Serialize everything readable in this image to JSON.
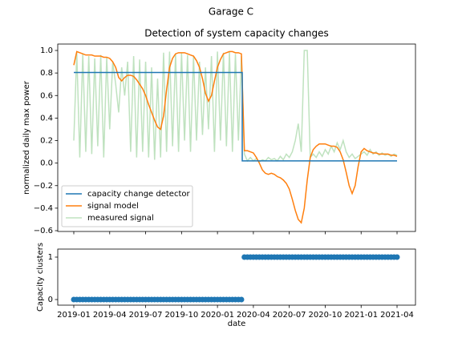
{
  "figure_title": "Garage C",
  "chart_data": [
    {
      "type": "line",
      "title": "Detection of system capacity changes",
      "ylabel": "normalized daily max power",
      "xlim": [
        -1.34,
        28.54
      ],
      "ylim": [
        -0.607,
        1.057
      ],
      "yticks": [
        {
          "value": -0.6,
          "label": "−0.6"
        },
        {
          "value": -0.4,
          "label": "−0.4"
        },
        {
          "value": -0.2,
          "label": "−0.2"
        },
        {
          "value": 0,
          "label": "0.0"
        },
        {
          "value": 0.2,
          "label": "0.2"
        },
        {
          "value": 0.4,
          "label": "0.4"
        },
        {
          "value": 0.6,
          "label": "0.6"
        },
        {
          "value": 0.8,
          "label": "0.8"
        },
        {
          "value": 1,
          "label": "1.0"
        }
      ],
      "legend": "lower left",
      "x": [
        0,
        0.25,
        0.5,
        0.75,
        1,
        1.25,
        1.5,
        1.75,
        2,
        2.25,
        2.5,
        2.75,
        3,
        3.25,
        3.5,
        3.75,
        4,
        4.25,
        4.5,
        4.75,
        5,
        5.25,
        5.5,
        5.75,
        6,
        6.25,
        6.5,
        6.75,
        7,
        7.25,
        7.5,
        7.75,
        8,
        8.25,
        8.5,
        8.75,
        9,
        9.25,
        9.5,
        9.75,
        10,
        10.25,
        10.5,
        10.75,
        11,
        11.25,
        11.5,
        11.75,
        12,
        12.25,
        12.5,
        12.75,
        13,
        13.25,
        13.5,
        13.75,
        14,
        14.25,
        14.5,
        14.75,
        15,
        15.25,
        15.5,
        15.75,
        16,
        16.25,
        16.5,
        16.75,
        17,
        17.25,
        17.5,
        17.75,
        18,
        18.25,
        18.5,
        18.75,
        19,
        19.25,
        19.5,
        19.75,
        20,
        20.25,
        20.5,
        20.75,
        21,
        21.25,
        21.5,
        21.75,
        22,
        22.25,
        22.5,
        22.75,
        23,
        23.25,
        23.5,
        23.75,
        24,
        24.25,
        24.5,
        24.75,
        25,
        25.25,
        25.5,
        25.75,
        26,
        26.25,
        26.5,
        26.75,
        27
      ],
      "series": [
        {
          "name": "capacity change detector",
          "color": "#1f77b4",
          "x": [
            0,
            14.07,
            14.07,
            27
          ],
          "values": [
            0.805,
            0.805,
            0.02,
            0.02
          ]
        },
        {
          "name": "signal model",
          "color": "#ff7f0e",
          "values": [
            0.87,
            0.99,
            0.98,
            0.97,
            0.96,
            0.96,
            0.96,
            0.95,
            0.95,
            0.95,
            0.94,
            0.94,
            0.93,
            0.9,
            0.85,
            0.76,
            0.73,
            0.76,
            0.78,
            0.78,
            0.77,
            0.74,
            0.7,
            0.66,
            0.6,
            0.52,
            0.45,
            0.38,
            0.32,
            0.3,
            0.42,
            0.65,
            0.85,
            0.93,
            0.97,
            0.98,
            0.98,
            0.98,
            0.97,
            0.96,
            0.95,
            0.91,
            0.85,
            0.75,
            0.62,
            0.55,
            0.6,
            0.73,
            0.85,
            0.92,
            0.97,
            0.98,
            0.99,
            0.99,
            0.98,
            0.98,
            0.97,
            0.11,
            0.11,
            0.1,
            0.09,
            0.05,
            0,
            -0.06,
            -0.09,
            -0.1,
            -0.09,
            -0.1,
            -0.12,
            -0.13,
            -0.15,
            -0.18,
            -0.23,
            -0.32,
            -0.42,
            -0.5,
            -0.53,
            -0.4,
            -0.15,
            0.05,
            0.12,
            0.15,
            0.17,
            0.17,
            0.17,
            0.16,
            0.15,
            0.15,
            0.14,
            0.1,
            0.03,
            -0.08,
            -0.2,
            -0.27,
            -0.2,
            -0.03,
            0.1,
            0.13,
            0.11,
            0.1,
            0.09,
            0.09,
            0.08,
            0.08,
            0.08,
            0.08,
            0.07,
            0.07,
            0.06
          ]
        },
        {
          "name": "measured signal",
          "color": "#2ca02c",
          "opacity": 0.3,
          "values": [
            0.2,
            0.98,
            0.05,
            0.97,
            0.1,
            0.95,
            0.08,
            0.93,
            0.15,
            0.96,
            0.05,
            0.94,
            0.3,
            0.9,
            0.7,
            0.45,
            0.85,
            0.6,
            0.9,
            0.1,
            0.95,
            0.05,
            0.92,
            0.1,
            0.9,
            0.05,
            0.85,
            0.03,
            0.75,
            0.05,
            0.98,
            0.1,
            0.99,
            0.15,
            0.97,
            0.1,
            0.98,
            0.2,
            0.96,
            0.1,
            0.95,
            0.2,
            0.9,
            0.25,
            0.85,
            0.3,
            0.95,
            0.1,
            0.99,
            0.2,
            0.98,
            0.15,
            0.99,
            0.1,
            0.97,
            0.2,
            0.95,
            0.08,
            0.02,
            0.05,
            0.02,
            0.04,
            0.01,
            0.03,
            0.02,
            0.05,
            0.03,
            0.04,
            0.02,
            0.06,
            0.03,
            0.08,
            0.05,
            0.1,
            0.2,
            0.35,
            0.1,
            1,
            1,
            0.05,
            0.08,
            0.05,
            0.1,
            0.06,
            0.12,
            0.08,
            0.15,
            0.1,
            0.18,
            0.12,
            0.2,
            0.1,
            0.05,
            0.08,
            0.04,
            0.06,
            0.08,
            0.1,
            0.07,
            0.12,
            0.08,
            0.1,
            0.07,
            0.09,
            0.07,
            0.08,
            0.06,
            0.08,
            0.07
          ]
        }
      ]
    },
    {
      "type": "scatter",
      "ylabel": "Capacity clusters",
      "xlabel": "date",
      "color": "#1f77b4",
      "xlim": [
        -1.34,
        28.54
      ],
      "ylim": [
        -0.132,
        1.189
      ],
      "yticks": [
        0,
        1
      ],
      "xticks": [
        {
          "value": 0,
          "label": "2019-01"
        },
        {
          "value": 3,
          "label": "2019-04"
        },
        {
          "value": 6,
          "label": "2019-07"
        },
        {
          "value": 9,
          "label": "2019-10"
        },
        {
          "value": 12,
          "label": "2020-01"
        },
        {
          "value": 15,
          "label": "2020-04"
        },
        {
          "value": 18,
          "label": "2020-07"
        },
        {
          "value": 21,
          "label": "2020-10"
        },
        {
          "value": 24,
          "label": "2021-01"
        },
        {
          "value": 27,
          "label": "2021-04"
        }
      ],
      "x": [
        0,
        0.25,
        0.5,
        0.75,
        1,
        1.25,
        1.5,
        1.75,
        2,
        2.25,
        2.5,
        2.75,
        3,
        3.25,
        3.5,
        3.75,
        4,
        4.25,
        4.5,
        4.75,
        5,
        5.25,
        5.5,
        5.75,
        6,
        6.25,
        6.5,
        6.75,
        7,
        7.25,
        7.5,
        7.75,
        8,
        8.25,
        8.5,
        8.75,
        9,
        9.25,
        9.5,
        9.75,
        10,
        10.25,
        10.5,
        10.75,
        11,
        11.25,
        11.5,
        11.75,
        12,
        12.25,
        12.5,
        12.75,
        13,
        13.25,
        13.5,
        13.75,
        14,
        14.25,
        14.5,
        14.75,
        15,
        15.25,
        15.5,
        15.75,
        16,
        16.25,
        16.5,
        16.75,
        17,
        17.25,
        17.5,
        17.75,
        18,
        18.25,
        18.5,
        18.75,
        19,
        19.25,
        19.5,
        19.75,
        20,
        20.25,
        20.5,
        20.75,
        21,
        21.25,
        21.5,
        21.75,
        22,
        22.25,
        22.5,
        22.75,
        23,
        23.25,
        23.5,
        23.75,
        24,
        24.25,
        24.5,
        24.75,
        25,
        25.25,
        25.5,
        25.75,
        26,
        26.25,
        26.5,
        26.75,
        27
      ],
      "values": [
        0,
        0,
        0,
        0,
        0,
        0,
        0,
        0,
        0,
        0,
        0,
        0,
        0,
        0,
        0,
        0,
        0,
        0,
        0,
        0,
        0,
        0,
        0,
        0,
        0,
        0,
        0,
        0,
        0,
        0,
        0,
        0,
        0,
        0,
        0,
        0,
        0,
        0,
        0,
        0,
        0,
        0,
        0,
        0,
        0,
        0,
        0,
        0,
        0,
        0,
        0,
        0,
        0,
        0,
        0,
        0,
        0,
        1,
        1,
        1,
        1,
        1,
        1,
        1,
        1,
        1,
        1,
        1,
        1,
        1,
        1,
        1,
        1,
        1,
        1,
        1,
        1,
        1,
        1,
        1,
        1,
        1,
        1,
        1,
        1,
        1,
        1,
        1,
        1,
        1,
        1,
        1,
        1,
        1,
        1,
        1,
        1,
        1,
        1,
        1,
        1,
        1,
        1,
        1,
        1,
        1,
        1,
        1,
        1
      ]
    }
  ]
}
